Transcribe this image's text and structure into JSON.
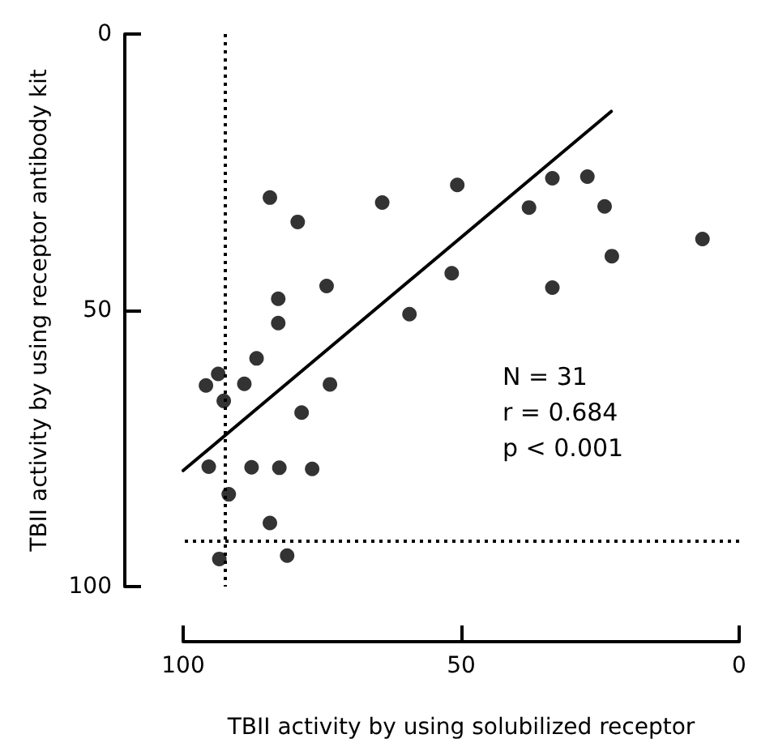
{
  "chart_data": {
    "type": "scatter",
    "xlabel": "TBII activity by using solubilized receptor",
    "ylabel": "TBII activity by using receptor antibody kit",
    "xlim": [
      100,
      0
    ],
    "xticks": [
      100,
      50,
      0
    ],
    "ylim": [
      100,
      0
    ],
    "yticks": [
      100,
      50,
      0
    ],
    "series": [
      {
        "color": "#000000",
        "marker": "circle",
        "x": [
          84.4,
          79.4,
          64.2,
          50.7,
          37.8,
          33.6,
          27.3,
          24.2,
          6.6,
          22.9,
          51.7,
          33.6,
          74.2,
          82.9,
          82.9,
          59.3,
          86.8,
          93.7,
          95.9,
          89.0,
          73.6,
          92.7,
          78.7,
          95.4,
          87.7,
          82.7,
          76.8,
          91.8,
          84.4,
          93.5,
          81.3
        ],
        "values": [
          29.6,
          34.0,
          30.5,
          27.3,
          31.4,
          26.1,
          25.8,
          31.2,
          37.1,
          40.2,
          43.3,
          45.9,
          45.6,
          47.9,
          52.3,
          50.7,
          58.7,
          61.5,
          63.6,
          63.3,
          63.4,
          66.4,
          68.5,
          78.3,
          78.4,
          78.5,
          78.7,
          83.3,
          88.5,
          95.0,
          94.4
        ]
      },
      {
        "type": "line",
        "color": "#000000",
        "marker": "none",
        "line_style": "solid",
        "x": [
          100,
          23
        ],
        "values": [
          79,
          14
        ]
      }
    ],
    "ref_lines": [
      {
        "axis": "x",
        "value": 92.4,
        "color": "#000000",
        "line_style": "dotted"
      },
      {
        "axis": "y",
        "value": 91.8,
        "color": "#000000",
        "line_style": "dotted"
      }
    ],
    "annotations": [
      "N = 31",
      "r = 0.684",
      "p < 0.001"
    ],
    "grid": false
  }
}
